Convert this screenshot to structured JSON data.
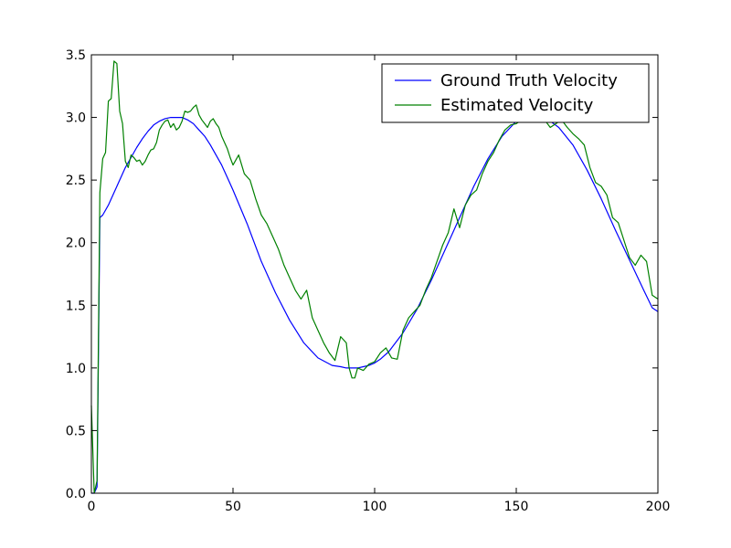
{
  "chart_data": {
    "type": "line",
    "title": "",
    "xlabel": "",
    "ylabel": "",
    "xlim": [
      0,
      200
    ],
    "ylim": [
      0.0,
      3.5
    ],
    "x_ticks": [
      0,
      50,
      100,
      150,
      200
    ],
    "x_tick_labels": [
      "0",
      "50",
      "100",
      "150",
      "200"
    ],
    "y_ticks": [
      0.0,
      0.5,
      1.0,
      1.5,
      2.0,
      2.5,
      3.0,
      3.5
    ],
    "y_tick_labels": [
      "0.0",
      "0.5",
      "1.0",
      "1.5",
      "2.0",
      "2.5",
      "3.0",
      "3.5"
    ],
    "grid": false,
    "legend_position": "top-right",
    "series": [
      {
        "name": "Ground Truth Velocity",
        "color": "#0000ff",
        "x": [
          0,
          1,
          2,
          3,
          4,
          6,
          8,
          10,
          12,
          14,
          16,
          18,
          20,
          22,
          24,
          26,
          28,
          30,
          32,
          34,
          36,
          38,
          40,
          42,
          44,
          46,
          48,
          50,
          55,
          60,
          65,
          70,
          75,
          80,
          85,
          88,
          90,
          92,
          94,
          96,
          98,
          100,
          102,
          105,
          110,
          115,
          120,
          125,
          130,
          135,
          140,
          145,
          150,
          152,
          154,
          156,
          158,
          160,
          162,
          165,
          170,
          175,
          180,
          185,
          190,
          195,
          198,
          200
        ],
        "values": [
          0.0,
          0.0,
          0.05,
          2.2,
          2.22,
          2.3,
          2.4,
          2.5,
          2.6,
          2.68,
          2.76,
          2.83,
          2.89,
          2.94,
          2.97,
          2.99,
          3.0,
          3.0,
          3.0,
          2.98,
          2.95,
          2.9,
          2.85,
          2.78,
          2.7,
          2.62,
          2.52,
          2.42,
          2.15,
          1.85,
          1.6,
          1.38,
          1.2,
          1.08,
          1.02,
          1.01,
          1.0,
          1.0,
          1.0,
          1.01,
          1.02,
          1.04,
          1.07,
          1.13,
          1.28,
          1.47,
          1.7,
          1.95,
          2.2,
          2.45,
          2.67,
          2.85,
          2.97,
          2.99,
          3.0,
          3.0,
          3.0,
          2.99,
          2.97,
          2.92,
          2.78,
          2.58,
          2.35,
          2.1,
          1.86,
          1.62,
          1.48,
          1.45
        ]
      },
      {
        "name": "Estimated Velocity",
        "color": "#008000",
        "x": [
          0,
          1,
          2,
          3,
          4,
          5,
          6,
          7,
          8,
          9,
          10,
          11,
          12,
          13,
          14,
          15,
          16,
          17,
          18,
          19,
          20,
          21,
          22,
          23,
          24,
          25,
          26,
          27,
          28,
          29,
          30,
          31,
          32,
          33,
          34,
          35,
          36,
          37,
          38,
          39,
          40,
          41,
          42,
          43,
          44,
          45,
          46,
          47,
          48,
          49,
          50,
          52,
          54,
          56,
          58,
          60,
          62,
          64,
          66,
          68,
          70,
          72,
          74,
          76,
          78,
          80,
          82,
          84,
          86,
          88,
          90,
          91,
          92,
          93,
          94,
          96,
          98,
          100,
          102,
          104,
          106,
          108,
          110,
          112,
          114,
          116,
          118,
          120,
          122,
          124,
          126,
          128,
          130,
          132,
          134,
          136,
          138,
          140,
          142,
          144,
          146,
          148,
          150,
          152,
          154,
          156,
          158,
          160,
          162,
          164,
          166,
          168,
          170,
          172,
          174,
          176,
          178,
          180,
          182,
          184,
          186,
          188,
          190,
          192,
          194,
          196,
          198,
          200
        ],
        "values": [
          0.7,
          0.0,
          0.1,
          2.4,
          2.67,
          2.72,
          3.13,
          3.15,
          3.45,
          3.43,
          3.05,
          2.95,
          2.65,
          2.6,
          2.7,
          2.68,
          2.65,
          2.66,
          2.62,
          2.65,
          2.7,
          2.74,
          2.75,
          2.8,
          2.9,
          2.94,
          2.97,
          2.98,
          2.92,
          2.95,
          2.9,
          2.92,
          2.97,
          3.05,
          3.04,
          3.05,
          3.08,
          3.1,
          3.02,
          2.98,
          2.95,
          2.92,
          2.97,
          2.99,
          2.95,
          2.92,
          2.85,
          2.8,
          2.75,
          2.68,
          2.62,
          2.7,
          2.55,
          2.5,
          2.35,
          2.22,
          2.15,
          2.05,
          1.95,
          1.82,
          1.72,
          1.62,
          1.55,
          1.62,
          1.4,
          1.3,
          1.2,
          1.12,
          1.06,
          1.25,
          1.2,
          1.0,
          0.92,
          0.92,
          1.0,
          0.98,
          1.03,
          1.05,
          1.12,
          1.16,
          1.08,
          1.07,
          1.3,
          1.4,
          1.45,
          1.5,
          1.62,
          1.72,
          1.85,
          1.98,
          2.08,
          2.27,
          2.12,
          2.3,
          2.38,
          2.42,
          2.55,
          2.65,
          2.72,
          2.82,
          2.9,
          2.94,
          2.95,
          2.98,
          3.0,
          3.03,
          3.05,
          2.98,
          2.92,
          2.95,
          2.98,
          2.92,
          2.87,
          2.83,
          2.78,
          2.6,
          2.48,
          2.45,
          2.38,
          2.2,
          2.16,
          2.02,
          1.88,
          1.82,
          1.9,
          1.85,
          1.58,
          1.55
        ]
      }
    ]
  }
}
